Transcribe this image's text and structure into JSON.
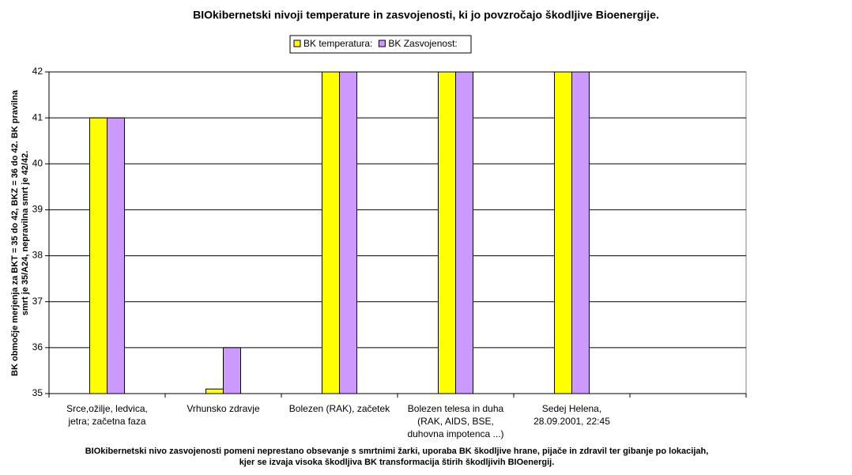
{
  "chart_data": {
    "type": "bar",
    "title": "BIOkibernetski nivoji temperature in zasvojenosti, ki jo povzročajo škodljive Bioenergije.",
    "y_label": [
      "BK območje merjenja za BKT = 35 do 42, BKZ = 36 do 42. BK pravilna",
      "smrt je 35/A24, nepravilna smrt je 42/42."
    ],
    "footnote": [
      "BIOkibernetski nivo zasvojenosti pomeni neprestano obsevanje s smrtnimi žarki, uporaba BK škodljive hrane, pijače in zdravil ter gibanje po lokacijah,",
      "kjer se izvaja visoka škodljiva BK transformacija štirih škodljivih BIOenergij."
    ],
    "categories": [
      [
        "Srce,ožilje, ledvica,",
        "jetra; začetna faza"
      ],
      [
        "Vrhunsko zdravje"
      ],
      [
        "Bolezen (RAK), začetek"
      ],
      [
        "Bolezen telesa in duha",
        "(RAK, AIDS, BSE,",
        "duhovna impotenca ...)"
      ],
      [
        "Sedej Helena,",
        "28.09.2001, 22:45"
      ],
      null
    ],
    "series": [
      {
        "name": "BK temperatura:",
        "color": "#ffff00",
        "values": [
          41,
          35.1,
          42,
          42,
          42,
          null
        ]
      },
      {
        "name": "BK Zasvojenost:",
        "color": "#cc99ff",
        "values": [
          41,
          36,
          42,
          42,
          42,
          null
        ]
      }
    ],
    "ylim": [
      35,
      42
    ],
    "yticks": [
      35,
      36,
      37,
      38,
      39,
      40,
      41,
      42
    ],
    "grid": true
  }
}
